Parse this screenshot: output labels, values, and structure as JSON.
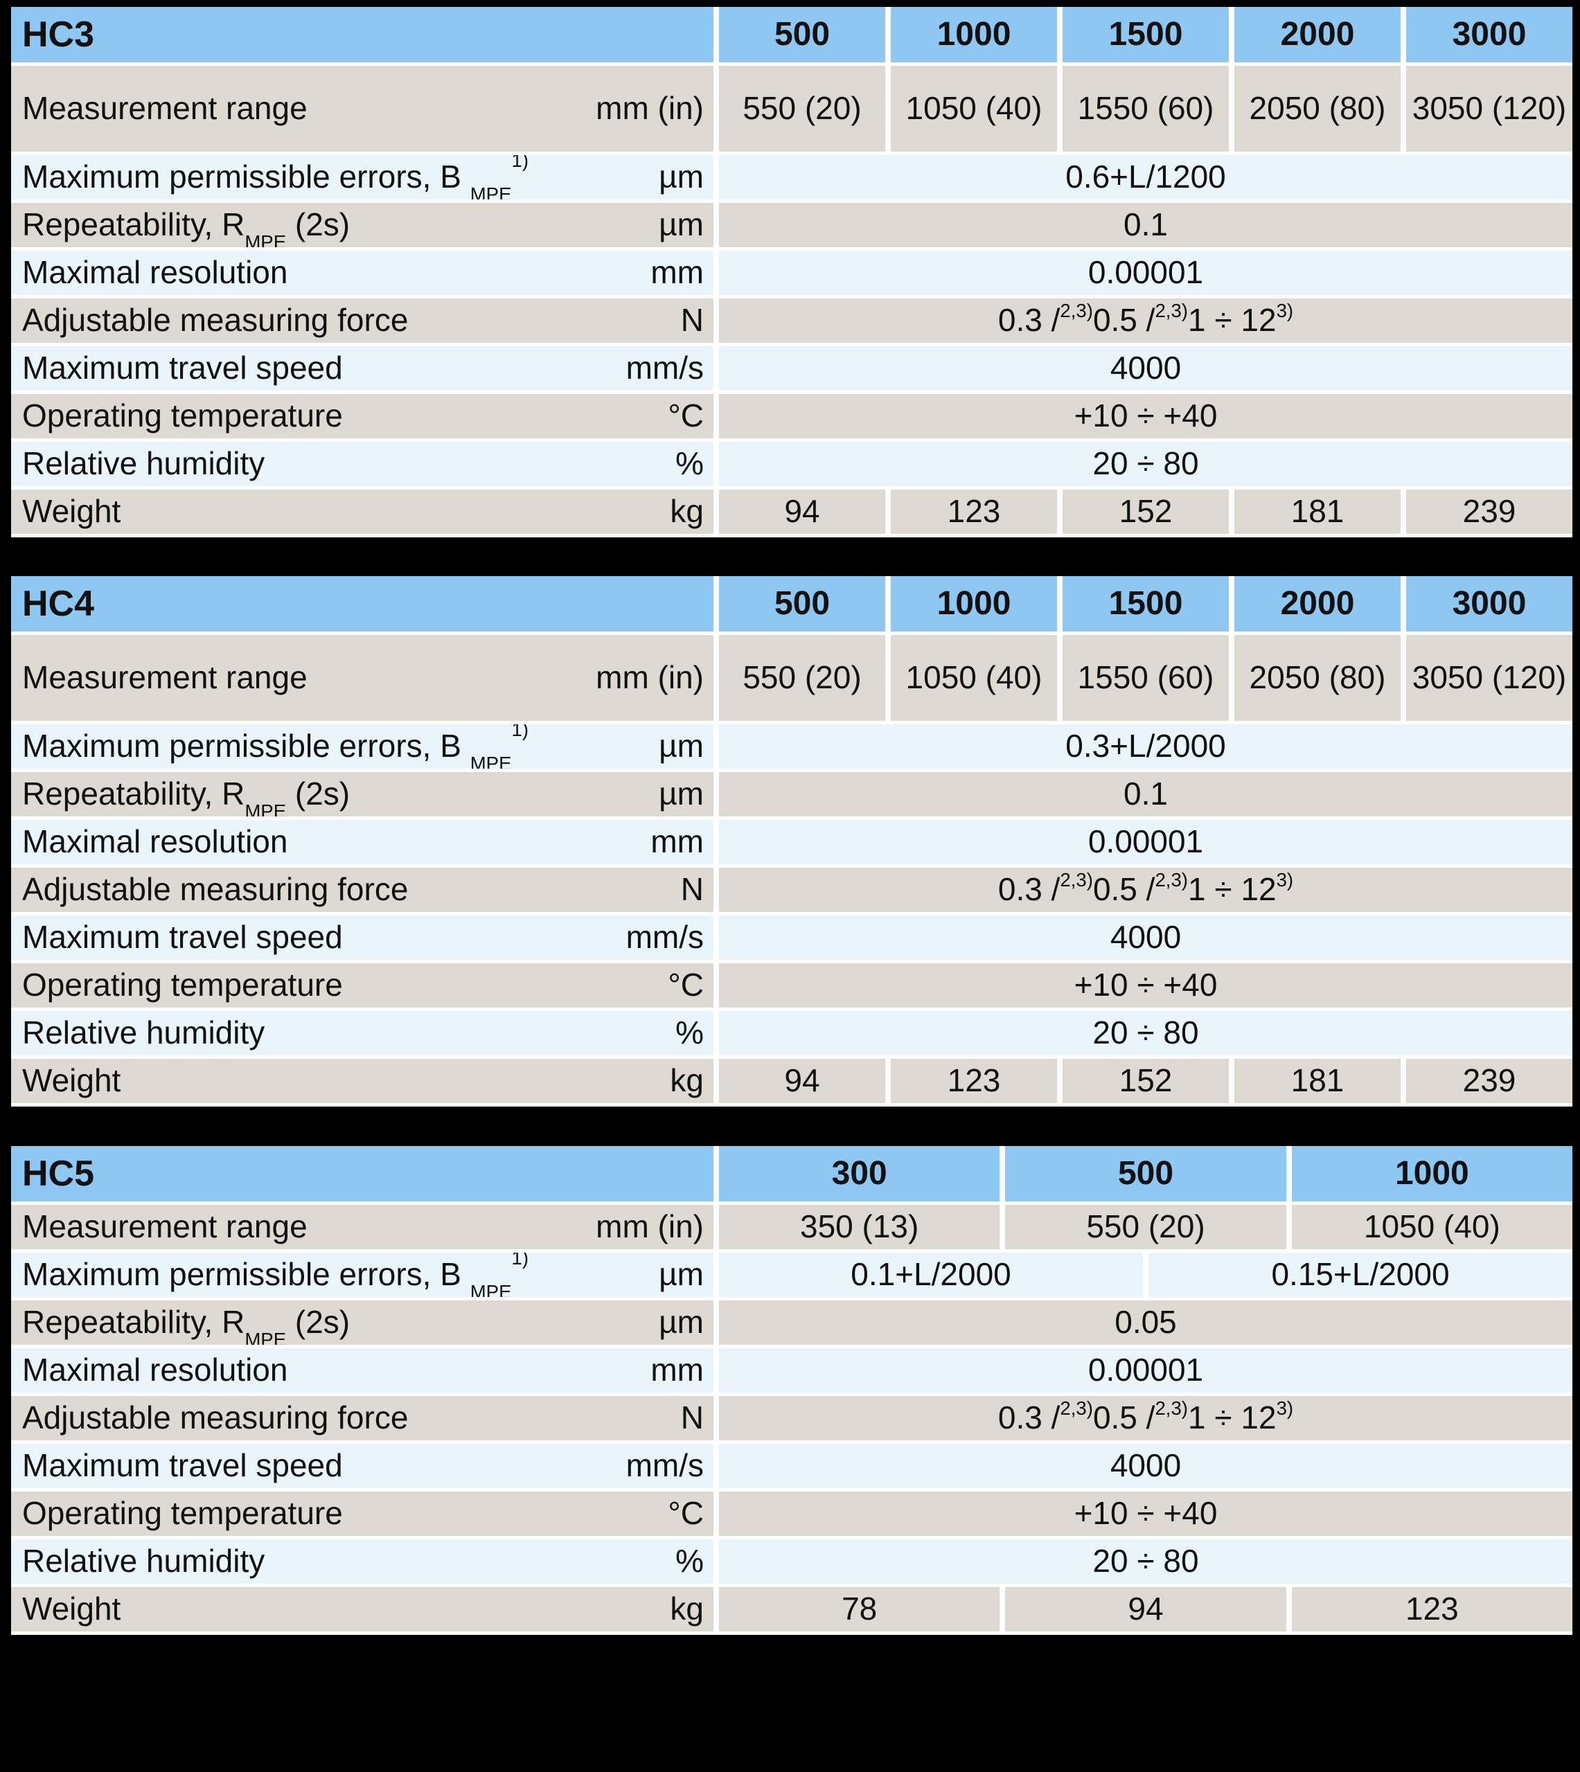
{
  "page": {
    "background": "#000000"
  },
  "colors": {
    "header_blue": "#8dc7f2",
    "row_beige": "#dedad3",
    "row_pale_blue": "#e9f4fb",
    "separator_white": "#ffffff",
    "text": "#111111"
  },
  "tables": [
    {
      "title": "HC3",
      "columns": [
        "500",
        "1000",
        "1500",
        "2000",
        "3000"
      ],
      "rows": {
        "range": {
          "label": "Measurement range",
          "unit": "mm (in)",
          "values": [
            "550 (20)",
            "1050 (40)",
            "1550 (60)",
            "2050 (80)",
            "3050 (120)"
          ]
        },
        "errors": {
          "label": "Maximum permissible errors, B ~MPE~^1)^",
          "unit": "µm",
          "value": "0.6+L/1200"
        },
        "repeat": {
          "label": "Repeatability, R~MPE~ (2s)",
          "unit": "µm",
          "value": "0.1"
        },
        "resolution": {
          "label": "Maximal resolution",
          "unit": "mm",
          "value": "0.00001"
        },
        "force": {
          "label": "Adjustable measuring force",
          "unit": "N",
          "value": "0.3 /^2,3)^ 0.5 / ^2,3)^1 ÷ 12 ^3)^"
        },
        "speed": {
          "label": "Maximum travel speed",
          "unit": "mm/s",
          "value": "4000"
        },
        "temperature": {
          "label": "Operating temperature",
          "unit": "°C",
          "value": "+10 ÷ +40"
        },
        "humidity": {
          "label": "Relative humidity",
          "unit": "%",
          "value": "20 ÷ 80"
        },
        "weight": {
          "label": "Weight",
          "unit": "kg",
          "values": [
            "94",
            "123",
            "152",
            "181",
            "239"
          ]
        }
      }
    },
    {
      "title": "HC4",
      "columns": [
        "500",
        "1000",
        "1500",
        "2000",
        "3000"
      ],
      "rows": {
        "range": {
          "label": "Measurement range",
          "unit": "mm (in)",
          "values": [
            "550 (20)",
            "1050 (40)",
            "1550 (60)",
            "2050 (80)",
            "3050 (120)"
          ]
        },
        "errors": {
          "label": "Maximum permissible errors, B ~MPE~^1)^",
          "unit": "µm",
          "value": "0.3+L/2000"
        },
        "repeat": {
          "label": "Repeatability, R~MPE~ (2s)",
          "unit": "µm",
          "value": "0.1"
        },
        "resolution": {
          "label": "Maximal resolution",
          "unit": "mm",
          "value": "0.00001"
        },
        "force": {
          "label": "Adjustable measuring force",
          "unit": "N",
          "value": "0.3 /^2,3)^ 0.5 / ^2,3)^1 ÷ 12 ^3)^"
        },
        "speed": {
          "label": "Maximum travel speed",
          "unit": "mm/s",
          "value": "4000"
        },
        "temperature": {
          "label": "Operating temperature",
          "unit": "°C",
          "value": "+10 ÷ +40"
        },
        "humidity": {
          "label": "Relative humidity",
          "unit": "%",
          "value": "20 ÷ 80"
        },
        "weight": {
          "label": "Weight",
          "unit": "kg",
          "values": [
            "94",
            "123",
            "152",
            "181",
            "239"
          ]
        }
      }
    },
    {
      "title": "HC5",
      "columns": [
        "300",
        "500",
        "1000"
      ],
      "rows": {
        "range": {
          "label": "Measurement range",
          "unit": "mm (in)",
          "values": [
            "350 (13)",
            "550 (20)",
            "1050 (40)"
          ]
        },
        "errors": {
          "label": "Maximum permissible errors, B ~MPE~^1)^",
          "unit": "µm",
          "values_split": [
            "0.1+L/2000",
            "0.15+L/2000"
          ]
        },
        "repeat": {
          "label": "Repeatability, R~MPE~ (2s)",
          "unit": "µm",
          "value": "0.05"
        },
        "resolution": {
          "label": "Maximal resolution",
          "unit": "mm",
          "value": "0.00001"
        },
        "force": {
          "label": "Adjustable measuring force",
          "unit": "N",
          "value": "0.3 /^2,3)^ 0.5 / ^2,3)^1 ÷ 12 ^3)^"
        },
        "speed": {
          "label": "Maximum travel speed",
          "unit": "mm/s",
          "value": "4000"
        },
        "temperature": {
          "label": "Operating temperature",
          "unit": "°C",
          "value": "+10 ÷ +40"
        },
        "humidity": {
          "label": "Relative humidity",
          "unit": "%",
          "value": "20 ÷ 80"
        },
        "weight": {
          "label": "Weight",
          "unit": "kg",
          "values": [
            "78",
            "94",
            "123"
          ]
        }
      }
    }
  ]
}
